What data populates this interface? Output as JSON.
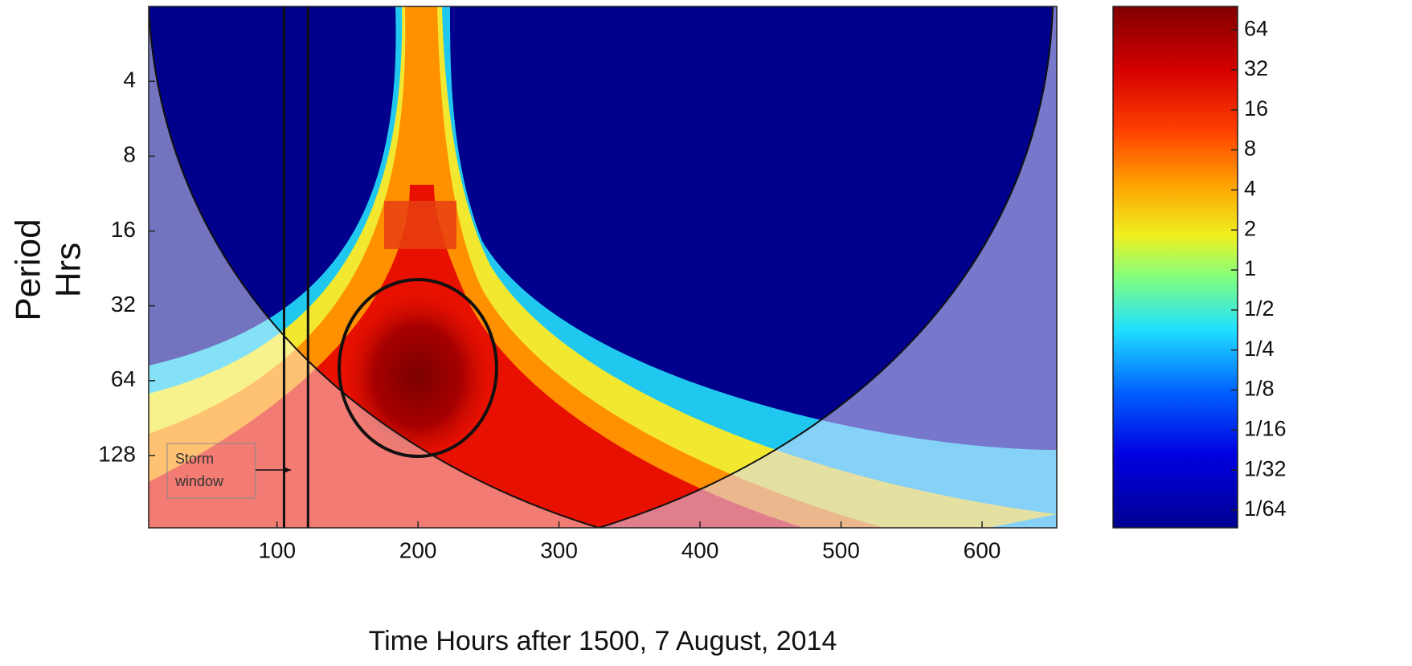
{
  "chart_data": {
    "type": "heatmap",
    "xlabel": "Time Hours after 1500, 7 August, 2014",
    "ylabel": [
      "Period",
      "Hrs"
    ],
    "xlim": [
      9,
      653
    ],
    "xticks": [
      100,
      200,
      300,
      400,
      500,
      600
    ],
    "ylim": [
      2,
      250
    ],
    "yticks": [
      4,
      8,
      16,
      32,
      64,
      128
    ],
    "y_scale": "log2",
    "y_inverted": true,
    "colorbar": {
      "lim": [
        0.0115,
        96
      ],
      "scale": "log2",
      "ticks": [
        64,
        32,
        16,
        8,
        4,
        2,
        1,
        {
          "value": 0.5,
          "label": "1/2"
        },
        {
          "value": 0.25,
          "label": "1/4"
        },
        {
          "value": 0.125,
          "label": "1/8"
        },
        {
          "value": 0.0625,
          "label": "1/16"
        },
        {
          "value": 0.03125,
          "label": "1/32"
        },
        {
          "value": 0.015625,
          "label": "1/64"
        }
      ]
    },
    "annotations": [
      {
        "text": [
          "Storm",
          "window"
        ],
        "x": [
          105,
          122
        ]
      }
    ]
  }
}
